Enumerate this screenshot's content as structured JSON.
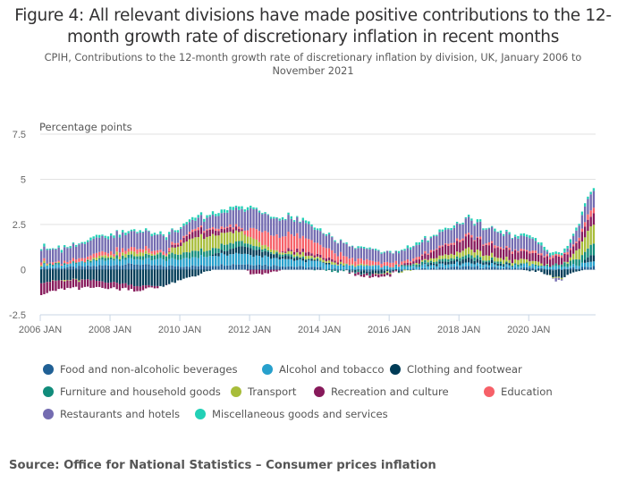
{
  "title": "Figure 4: All relevant divisions have made positive contributions to the 12-month growth rate of discretionary inflation in recent months",
  "subtitle": "CPIH, Contributions to the 12-month growth rate of discretionary inflation by division, UK, January 2006 to November 2021",
  "source": "Source: Office for National Statistics – Consumer prices inflation",
  "chart_data": {
    "type": "bar",
    "stacked": true,
    "title": "Figure 4: All relevant divisions have made positive contributions to the 12-month growth rate of discretionary inflation in recent months",
    "ylabel": "Percentage points",
    "xlabel": "",
    "ylim": [
      -2.5,
      7.5
    ],
    "yticks": [
      -2.5,
      0,
      2.5,
      5,
      7.5
    ],
    "ytick_labels": [
      "-2.5",
      "0",
      "2.5",
      "5",
      "7.5"
    ],
    "x_start": "2006 JAN",
    "x_end": "2021 NOV",
    "n_months": 191,
    "xtick_labels": [
      "2006 JAN",
      "2008 JAN",
      "2010 JAN",
      "2012 JAN",
      "2014 JAN",
      "2016 JAN",
      "2018 JAN",
      "2020 JAN"
    ],
    "xtick_month_index": [
      0,
      24,
      48,
      72,
      96,
      120,
      144,
      168
    ],
    "grid": true,
    "legend_position": "bottom",
    "anchor_note": "Series values given at yearly-ish anchor months (month_index) and linearly interpolated for intermediate months; values estimated from the figure.",
    "anchor_months": [
      0,
      6,
      12,
      18,
      24,
      30,
      33,
      36,
      42,
      48,
      51,
      54,
      60,
      66,
      69,
      72,
      78,
      84,
      90,
      96,
      102,
      108,
      114,
      120,
      126,
      132,
      138,
      144,
      147,
      150,
      156,
      162,
      168,
      171,
      174,
      177,
      180,
      183,
      186,
      188,
      190
    ],
    "series": [
      {
        "name": "Food and non-alcoholic beverages",
        "color": "#206095",
        "values": [
          0.1,
          0.1,
          0.15,
          0.2,
          0.25,
          0.3,
          0.3,
          0.25,
          0.2,
          0.2,
          0.2,
          0.2,
          0.25,
          0.3,
          0.3,
          0.3,
          0.25,
          0.2,
          0.15,
          0.1,
          0.0,
          -0.05,
          -0.05,
          -0.05,
          0.0,
          0.05,
          0.1,
          0.15,
          0.15,
          0.15,
          0.1,
          0.1,
          0.1,
          0.05,
          0.0,
          0.0,
          0.0,
          0.1,
          0.1,
          0.15,
          0.2
        ]
      },
      {
        "name": "Alcohol and tobacco",
        "color": "#27a0cc",
        "values": [
          0.15,
          0.15,
          0.2,
          0.25,
          0.3,
          0.3,
          0.3,
          0.3,
          0.35,
          0.4,
          0.45,
          0.5,
          0.55,
          0.6,
          0.6,
          0.55,
          0.45,
          0.4,
          0.35,
          0.3,
          0.25,
          0.2,
          0.2,
          0.15,
          0.15,
          0.2,
          0.2,
          0.2,
          0.2,
          0.2,
          0.15,
          0.15,
          0.15,
          0.15,
          0.15,
          0.15,
          0.15,
          0.15,
          0.2,
          0.25,
          0.3
        ]
      },
      {
        "name": "Clothing and footwear",
        "color": "#003c57",
        "values": [
          -0.7,
          -0.6,
          -0.55,
          -0.6,
          -0.7,
          -0.8,
          -0.9,
          -0.9,
          -0.9,
          -0.6,
          -0.4,
          -0.3,
          0.1,
          0.3,
          0.4,
          0.35,
          0.25,
          0.15,
          0.1,
          0.05,
          0.0,
          -0.1,
          -0.15,
          -0.1,
          0.0,
          0.1,
          0.15,
          0.2,
          0.25,
          0.2,
          0.1,
          0.05,
          -0.05,
          -0.1,
          -0.3,
          -0.4,
          -0.4,
          -0.2,
          0.0,
          0.3,
          0.4
        ]
      },
      {
        "name": "Furniture and household goods",
        "color": "#118c7b",
        "values": [
          0.05,
          0.05,
          0.05,
          0.1,
          0.15,
          0.15,
          0.2,
          0.2,
          0.3,
          0.3,
          0.35,
          0.35,
          0.3,
          0.3,
          0.25,
          0.2,
          0.1,
          0.1,
          0.05,
          0.0,
          -0.05,
          -0.05,
          0.0,
          0.0,
          0.05,
          0.1,
          0.1,
          0.15,
          0.15,
          0.15,
          0.1,
          0.05,
          0.05,
          0.05,
          0.05,
          0.1,
          0.2,
          0.3,
          0.4,
          0.5,
          0.6
        ]
      },
      {
        "name": "Transport",
        "color": "#a8bd3a",
        "values": [
          0.1,
          0.0,
          -0.05,
          0.1,
          0.1,
          0.2,
          0.2,
          0.15,
          0.0,
          0.5,
          0.7,
          0.8,
          0.7,
          0.6,
          0.5,
          0.4,
          0.2,
          0.1,
          0.2,
          0.15,
          0.1,
          0.05,
          0.0,
          -0.05,
          0.0,
          0.1,
          0.2,
          0.3,
          0.35,
          0.3,
          0.25,
          0.2,
          0.2,
          0.15,
          0.0,
          -0.1,
          0.0,
          0.3,
          0.7,
          1.0,
          1.1
        ]
      },
      {
        "name": "Recreation and culture",
        "color": "#871a5b",
        "values": [
          -0.6,
          -0.5,
          -0.45,
          -0.4,
          -0.35,
          -0.3,
          -0.3,
          -0.2,
          0.0,
          0.2,
          0.3,
          0.4,
          0.3,
          0.2,
          0.1,
          -0.2,
          -0.25,
          0.1,
          0.2,
          0.15,
          0.1,
          -0.1,
          -0.15,
          -0.1,
          0.1,
          0.3,
          0.5,
          0.6,
          0.65,
          0.6,
          0.55,
          0.5,
          0.45,
          0.4,
          0.45,
          0.4,
          0.45,
          0.4,
          0.5,
          0.6,
          0.6
        ]
      },
      {
        "name": "Education",
        "color": "#f66068",
        "values": [
          0.1,
          0.1,
          0.15,
          0.2,
          0.2,
          0.2,
          0.25,
          0.2,
          0.15,
          0.1,
          0.1,
          0.1,
          0.1,
          0.1,
          0.1,
          0.5,
          0.8,
          0.9,
          0.75,
          0.6,
          0.4,
          0.3,
          0.25,
          0.2,
          0.15,
          0.1,
          0.1,
          0.1,
          0.1,
          0.1,
          0.1,
          0.1,
          0.1,
          0.1,
          0.1,
          0.1,
          0.1,
          0.1,
          0.2,
          0.3,
          0.3
        ]
      },
      {
        "name": "Restaurants and hotels",
        "color": "#746cb1",
        "values": [
          0.7,
          0.7,
          0.75,
          0.8,
          0.85,
          0.9,
          0.9,
          0.9,
          0.85,
          0.6,
          0.5,
          0.5,
          0.7,
          0.9,
          1.0,
          1.1,
          1.0,
          0.9,
          0.8,
          0.75,
          0.7,
          0.65,
          0.6,
          0.55,
          0.6,
          0.7,
          0.75,
          0.8,
          0.85,
          0.8,
          0.75,
          0.75,
          0.7,
          0.5,
          0.2,
          -0.2,
          0.0,
          0.5,
          0.8,
          0.9,
          0.9
        ]
      },
      {
        "name": "Miscellaneous goods and services",
        "color": "#22d0b6",
        "values": [
          0.1,
          0.1,
          0.1,
          0.1,
          0.1,
          0.1,
          0.1,
          0.1,
          0.1,
          0.1,
          0.1,
          0.15,
          0.15,
          0.15,
          0.15,
          0.15,
          0.1,
          0.1,
          0.1,
          0.1,
          0.05,
          0.05,
          0.05,
          0.05,
          0.1,
          0.1,
          0.1,
          0.1,
          0.1,
          0.1,
          0.1,
          0.1,
          0.1,
          0.1,
          0.15,
          0.15,
          0.15,
          0.15,
          0.15,
          0.15,
          0.15
        ]
      }
    ]
  }
}
